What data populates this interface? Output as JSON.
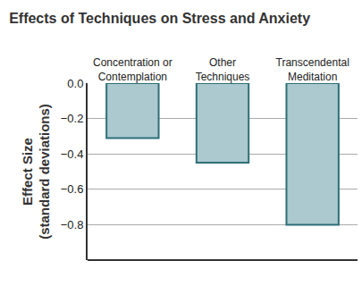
{
  "chart_data": {
    "type": "bar",
    "title": "Effects of Techniques on Stress and Anxiety",
    "categories": [
      "Concentration or Contemplation",
      "Other Techniques",
      "Transcendental Meditation"
    ],
    "values": [
      -0.31,
      -0.45,
      -0.8
    ],
    "color": "#abc9cf",
    "y_label": "Effect Size (standard deviations)",
    "ylim": [
      -1.0,
      0.0
    ],
    "yticks": [
      {
        "value": 0,
        "label": "0.0"
      },
      {
        "value": -0.2,
        "label": "−0.2"
      },
      {
        "value": -0.4,
        "label": "−0.4"
      },
      {
        "value": -0.6,
        "label": "−0.6"
      },
      {
        "value": -0.8,
        "label": "−0.8"
      }
    ],
    "grid": true
  }
}
